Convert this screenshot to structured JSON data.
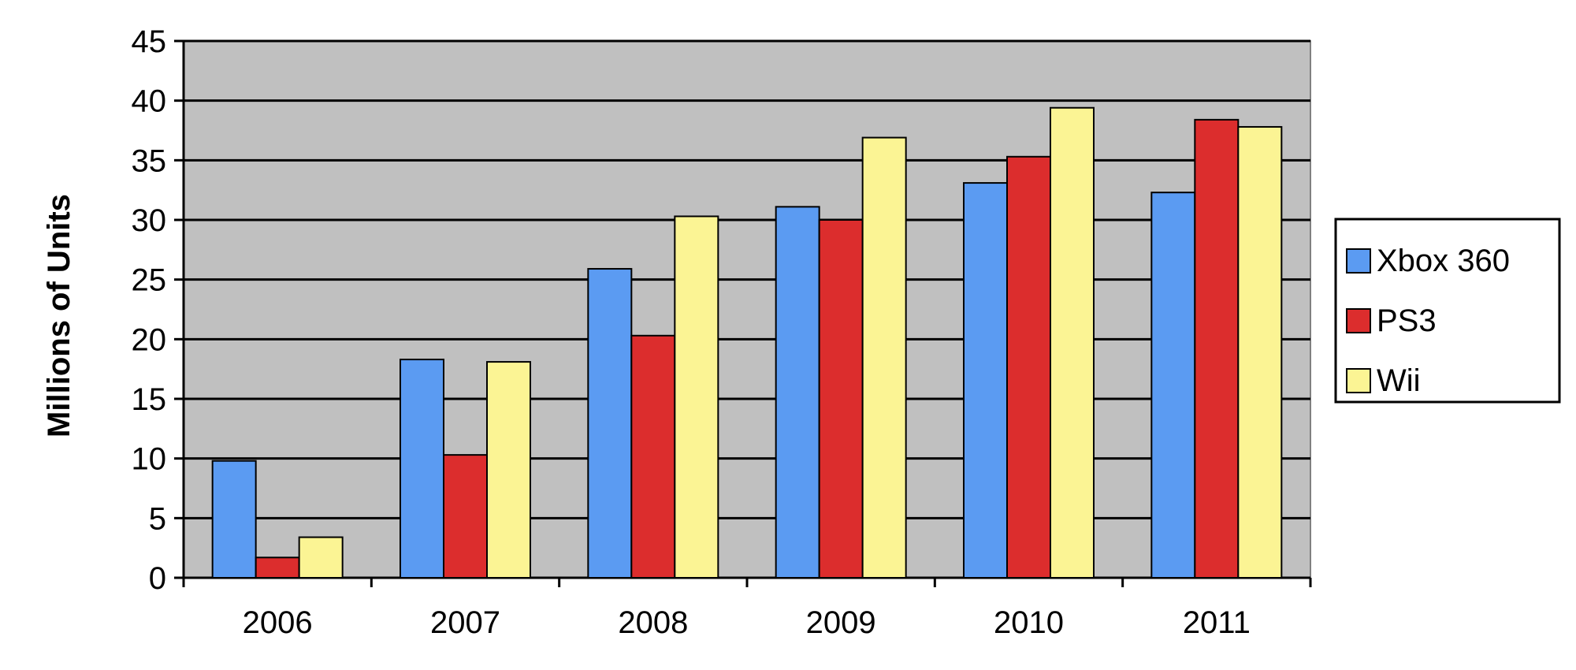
{
  "chart_data": {
    "type": "bar",
    "title": "",
    "xlabel": "",
    "ylabel": "Millions of Units",
    "categories": [
      "2006",
      "2007",
      "2008",
      "2009",
      "2010",
      "2011"
    ],
    "series": [
      {
        "name": "Xbox 360",
        "color": "#5b9bf2",
        "values": [
          9.8,
          18.3,
          25.9,
          31.1,
          33.1,
          32.3
        ]
      },
      {
        "name": "PS3",
        "color": "#dc2d2d",
        "values": [
          1.7,
          10.3,
          20.3,
          30.0,
          35.3,
          38.4
        ]
      },
      {
        "name": "Wii",
        "color": "#fbf494",
        "values": [
          3.4,
          18.1,
          30.3,
          36.9,
          39.4,
          37.8
        ]
      }
    ],
    "ylim": [
      0,
      45
    ],
    "yticks": [
      "0",
      "5",
      "10",
      "15",
      "20",
      "25",
      "30",
      "35",
      "40",
      "45"
    ],
    "grid": true,
    "legend_position": "right",
    "plot_background": "#c0c0c0"
  }
}
